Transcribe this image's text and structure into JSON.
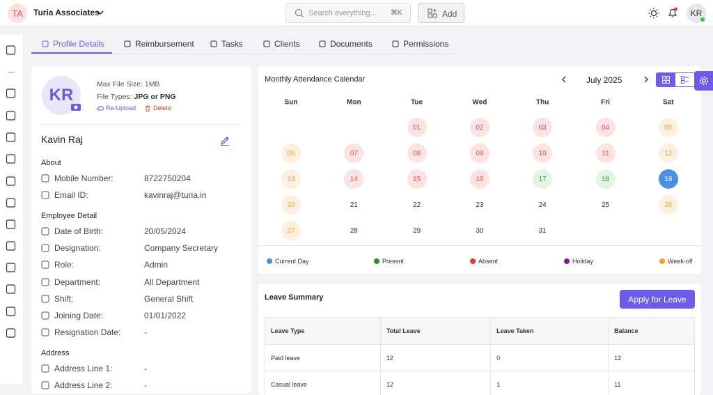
{
  "header": {
    "org_initials": "TA",
    "org_name": "Turia Associates",
    "search_placeholder": "Search everything...",
    "search_shortcut": "⌘K",
    "add_label": "Add",
    "user_initials": "KR"
  },
  "tabs": [
    "Profile Details",
    "Reimbursement",
    "Tasks",
    "Clients",
    "Documents",
    "Permissions"
  ],
  "profile": {
    "initials": "KR",
    "max_file_size": "Max File Size: 1MB",
    "file_types_label": "File Types:",
    "file_types_value": "JPG or PNG",
    "re_upload": "Re-Upload",
    "delete": "Delete",
    "name": "Kavin Raj",
    "sections": [
      {
        "title": "About",
        "fields": [
          {
            "label": "Mobile Number:",
            "value": "8722750204"
          },
          {
            "label": "Email ID:",
            "value": "kavinraj@turia.in"
          }
        ]
      },
      {
        "title": "Employee Detail",
        "fields": [
          {
            "label": "Date of Birth:",
            "value": "20/05/2024"
          },
          {
            "label": "Designation:",
            "value": "Company Secretary"
          },
          {
            "label": "Role:",
            "value": "Admin"
          },
          {
            "label": "Department:",
            "value": "All Department"
          },
          {
            "label": "Shift:",
            "value": "General Shift"
          },
          {
            "label": "Joining Date:",
            "value": "01/01/2022"
          },
          {
            "label": "Resignation Date:",
            "value": "-"
          }
        ]
      },
      {
        "title": "Address",
        "fields": [
          {
            "label": "Address Line 1:",
            "value": "-"
          },
          {
            "label": "Address Line 2:",
            "value": "-"
          }
        ]
      }
    ]
  },
  "calendar": {
    "title": "Monthly Attendance Calendar",
    "month": "July 2025",
    "weekdays": [
      "Sun",
      "Mon",
      "Tue",
      "Wed",
      "Thu",
      "Fri",
      "Sat"
    ],
    "days": [
      null,
      null,
      {
        "day": "01",
        "status": "absent"
      },
      {
        "day": "02",
        "status": "absent"
      },
      {
        "day": "03",
        "status": "absent"
      },
      {
        "day": "04",
        "status": "absent"
      },
      {
        "day": "05",
        "status": "weekoff"
      },
      {
        "day": "06",
        "status": "weekoff"
      },
      {
        "day": "07",
        "status": "absent"
      },
      {
        "day": "08",
        "status": "absent"
      },
      {
        "day": "09",
        "status": "absent"
      },
      {
        "day": "10",
        "status": "absent"
      },
      {
        "day": "11",
        "status": "absent"
      },
      {
        "day": "12",
        "status": "weekoff"
      },
      {
        "day": "13",
        "status": "weekoff"
      },
      {
        "day": "14",
        "status": "absent"
      },
      {
        "day": "15",
        "status": "absent"
      },
      {
        "day": "16",
        "status": "absent"
      },
      {
        "day": "17",
        "status": "present"
      },
      {
        "day": "18",
        "status": "present"
      },
      {
        "day": "19",
        "status": "current"
      },
      {
        "day": "20",
        "status": "weekoff"
      },
      {
        "day": "21",
        "status": "none"
      },
      {
        "day": "22",
        "status": "none"
      },
      {
        "day": "23",
        "status": "none"
      },
      {
        "day": "24",
        "status": "none"
      },
      {
        "day": "25",
        "status": "none"
      },
      {
        "day": "26",
        "status": "weekoff"
      },
      {
        "day": "27",
        "status": "weekoff"
      },
      {
        "day": "28",
        "status": "none"
      },
      {
        "day": "29",
        "status": "none"
      },
      {
        "day": "30",
        "status": "none"
      },
      {
        "day": "31",
        "status": "none"
      }
    ],
    "legend": [
      {
        "label": "Current Day",
        "color": "#4a90e2"
      },
      {
        "label": "Present",
        "color": "#2e8b2e"
      },
      {
        "label": "Absent",
        "color": "#e53935"
      },
      {
        "label": "Holiday",
        "color": "#7b1f8a"
      },
      {
        "label": "Week-off",
        "color": "#f0a030"
      }
    ]
  },
  "leave_summary": {
    "title": "Leave Summary",
    "apply_button": "Apply for Leave",
    "columns": [
      "Leave Type",
      "Total Leave",
      "Leave Taken",
      "Balance"
    ],
    "rows": [
      [
        "Paid leave",
        "12",
        "0",
        "12"
      ],
      [
        "Casual leave",
        "12",
        "1",
        "11"
      ]
    ]
  }
}
